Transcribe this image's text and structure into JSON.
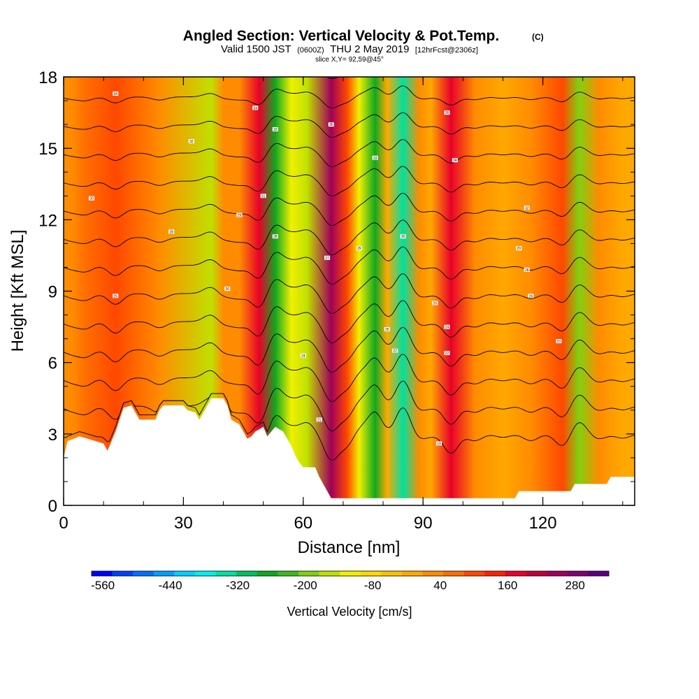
{
  "chart_data": {
    "type": "heatmap",
    "title": "Angled Section: Vertical Velocity & Pot.Temp.",
    "title_units": "(C)",
    "subtitle": {
      "prefix": "Valid 1500 JST",
      "utc": "(0600Z)",
      "date": "THU 2 May 2019",
      "forecast": "[12hrFcst@2306z]"
    },
    "slice_label": "slice X,Y= 92,59@45°",
    "xlabel": "Distance [nm]",
    "ylabel": "Height [Kft MSL]",
    "xlim": [
      0,
      143
    ],
    "ylim": [
      0,
      18
    ],
    "x_ticks": [
      0,
      30,
      60,
      90,
      120
    ],
    "y_ticks": [
      0,
      3,
      6,
      9,
      12,
      15,
      18
    ],
    "grid": false,
    "colorbar": {
      "label": "Vertical Velocity [cm/s]",
      "min": -580,
      "max": 340,
      "step": 40,
      "tick_labels": [
        "-560",
        "-440",
        "-320",
        "-200",
        "-80",
        "40",
        "160",
        "280"
      ],
      "tick_values": [
        -560,
        -440,
        -320,
        -200,
        -80,
        40,
        160,
        280
      ],
      "colors": [
        "#0000ff",
        "#0040ff",
        "#0070ff",
        "#00a0ff",
        "#00d0ff",
        "#00f0f0",
        "#00e0a0",
        "#00c060",
        "#10a820",
        "#40b820",
        "#80d010",
        "#c0e000",
        "#f0f000",
        "#ffd800",
        "#ffc000",
        "#ffa800",
        "#ff8c00",
        "#ff6e00",
        "#ff4800",
        "#ff2000",
        "#e8002a",
        "#c0003c",
        "#a0005a",
        "#800070",
        "#5a0080"
      ]
    },
    "velocity_bands": [
      {
        "x": 2,
        "value": 60
      },
      {
        "x": 5.5,
        "value": 100
      },
      {
        "x": 13,
        "value": 170
      },
      {
        "x": 24,
        "value": 90
      },
      {
        "x": 37,
        "value": -110
      },
      {
        "x": 40,
        "value": 60
      },
      {
        "x": 44,
        "value": 80
      },
      {
        "x": 49,
        "value": 230
      },
      {
        "x": 53,
        "value": -230
      },
      {
        "x": 57,
        "value": -70
      },
      {
        "x": 61,
        "value": -130
      },
      {
        "x": 67,
        "value": 300
      },
      {
        "x": 71,
        "value": 150
      },
      {
        "x": 74,
        "value": -80
      },
      {
        "x": 78,
        "value": -260
      },
      {
        "x": 81,
        "value": 20
      },
      {
        "x": 85,
        "value": -320
      },
      {
        "x": 89,
        "value": 60
      },
      {
        "x": 92,
        "value": 20
      },
      {
        "x": 97,
        "value": 230
      },
      {
        "x": 103,
        "value": 80
      },
      {
        "x": 110,
        "value": 40
      },
      {
        "x": 117,
        "value": 80
      },
      {
        "x": 125,
        "value": 150
      },
      {
        "x": 129,
        "value": -150
      },
      {
        "x": 134,
        "value": 60
      },
      {
        "x": 140,
        "value": 50
      }
    ],
    "terrain": [
      [
        0,
        2
      ],
      [
        1,
        2.7
      ],
      [
        4,
        2.9
      ],
      [
        8,
        2.7
      ],
      [
        10,
        2.6
      ],
      [
        11,
        2.3
      ],
      [
        12,
        2.7
      ],
      [
        13,
        3.1
      ],
      [
        14,
        3.6
      ],
      [
        15,
        4.1
      ],
      [
        17,
        4.2
      ],
      [
        18,
        3.9
      ],
      [
        19,
        3.6
      ],
      [
        21,
        3.6
      ],
      [
        23,
        3.6
      ],
      [
        24,
        4.0
      ],
      [
        25,
        4.2
      ],
      [
        30,
        4.2
      ],
      [
        31,
        4.0
      ],
      [
        33,
        3.9
      ],
      [
        34,
        3.6
      ],
      [
        35,
        3.9
      ],
      [
        37,
        4.5
      ],
      [
        40,
        4.5
      ],
      [
        41,
        4.2
      ],
      [
        42,
        3.6
      ],
      [
        44,
        3.4
      ],
      [
        45,
        3.1
      ],
      [
        46,
        2.8
      ],
      [
        47,
        2.9
      ],
      [
        48,
        3.1
      ],
      [
        50,
        3.3
      ],
      [
        51,
        2.9
      ],
      [
        52,
        3.1
      ],
      [
        53,
        3.3
      ],
      [
        55,
        3.1
      ],
      [
        57,
        2.5
      ],
      [
        58,
        2.1
      ],
      [
        59,
        1.8
      ],
      [
        60,
        1.6
      ],
      [
        63,
        1.6
      ],
      [
        64,
        1.2
      ],
      [
        65,
        0.9
      ],
      [
        66,
        0.6
      ],
      [
        67,
        0.3
      ],
      [
        73,
        0.3
      ],
      [
        80,
        0.3
      ],
      [
        90,
        0.3
      ],
      [
        100,
        0.3
      ],
      [
        110,
        0.3
      ],
      [
        113,
        0.3
      ],
      [
        114,
        0.6
      ],
      [
        119,
        0.6
      ],
      [
        120,
        0.6
      ],
      [
        127,
        0.6
      ],
      [
        128,
        0.9
      ],
      [
        136,
        0.9
      ],
      [
        137,
        1.2
      ],
      [
        143,
        1.2
      ]
    ],
    "isentropes": {
      "count": 15,
      "base_height": 3.0,
      "spacing": 1.0,
      "line_labels": [
        "19",
        "21",
        "22",
        "24",
        "25",
        "26",
        "27",
        "28"
      ]
    },
    "contour_labels": [
      {
        "x": 13,
        "y": 17.3,
        "text": "34"
      },
      {
        "x": 32,
        "y": 15.3,
        "text": "32"
      },
      {
        "x": 48,
        "y": 16.7,
        "text": "34"
      },
      {
        "x": 53,
        "y": 15.8,
        "text": "32"
      },
      {
        "x": 67,
        "y": 16.0,
        "text": "35"
      },
      {
        "x": 96,
        "y": 16.5,
        "text": "35"
      },
      {
        "x": 78,
        "y": 14.6,
        "text": "33"
      },
      {
        "x": 98,
        "y": 14.5,
        "text": "34"
      },
      {
        "x": 7,
        "y": 12.9,
        "text": "30"
      },
      {
        "x": 50,
        "y": 13.0,
        "text": "31"
      },
      {
        "x": 116,
        "y": 12.5,
        "text": "32"
      },
      {
        "x": 44,
        "y": 12.2,
        "text": "29"
      },
      {
        "x": 27,
        "y": 11.5,
        "text": "28"
      },
      {
        "x": 53,
        "y": 11.3,
        "text": "28"
      },
      {
        "x": 85,
        "y": 11.3,
        "text": "30"
      },
      {
        "x": 74,
        "y": 10.8,
        "text": "29"
      },
      {
        "x": 66,
        "y": 10.4,
        "text": "27"
      },
      {
        "x": 114,
        "y": 10.8,
        "text": "29"
      },
      {
        "x": 116,
        "y": 9.9,
        "text": "28"
      },
      {
        "x": 13,
        "y": 8.8,
        "text": "25"
      },
      {
        "x": 41,
        "y": 9.1,
        "text": "26"
      },
      {
        "x": 93,
        "y": 8.5,
        "text": "26"
      },
      {
        "x": 117,
        "y": 8.8,
        "text": "26"
      },
      {
        "x": 96,
        "y": 7.5,
        "text": "24"
      },
      {
        "x": 81,
        "y": 7.4,
        "text": "25"
      },
      {
        "x": 124,
        "y": 6.9,
        "text": "23"
      },
      {
        "x": 60,
        "y": 6.3,
        "text": "24"
      },
      {
        "x": 83,
        "y": 6.5,
        "text": "22"
      },
      {
        "x": 96,
        "y": 6.4,
        "text": "22"
      },
      {
        "x": 64,
        "y": 3.6,
        "text": "21"
      },
      {
        "x": 94,
        "y": 2.6,
        "text": "19"
      }
    ]
  }
}
